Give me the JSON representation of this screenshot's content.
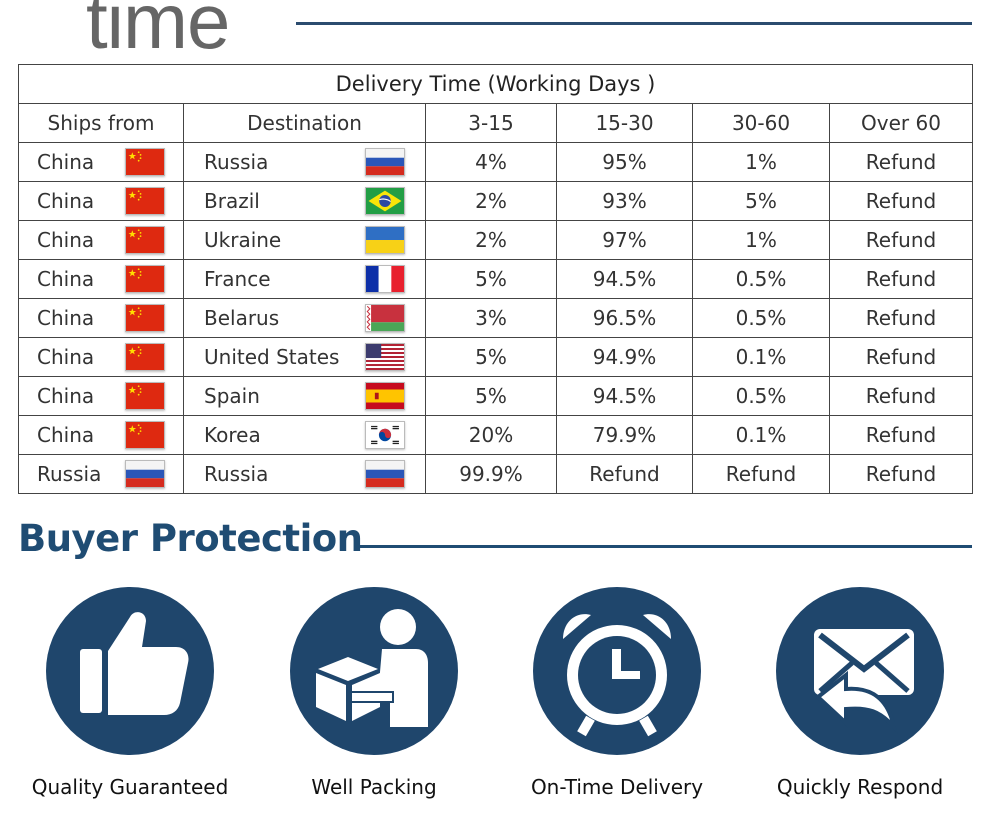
{
  "header": {
    "title": "time"
  },
  "table": {
    "title": "Delivery Time (Working Days )",
    "columns": [
      "Ships from",
      "Destination",
      "3-15",
      "15-30",
      "30-60",
      "Over 60"
    ],
    "rows": [
      {
        "from": "China",
        "from_flag": "china-flag-icon",
        "dest": "Russia",
        "dest_flag": "russia-flag-icon",
        "c1": "4%",
        "c2": "95%",
        "c3": "1%",
        "c4": "Refund"
      },
      {
        "from": "China",
        "from_flag": "china-flag-icon",
        "dest": "Brazil",
        "dest_flag": "brazil-flag-icon",
        "c1": "2%",
        "c2": "93%",
        "c3": "5%",
        "c4": "Refund"
      },
      {
        "from": "China",
        "from_flag": "china-flag-icon",
        "dest": "Ukraine",
        "dest_flag": "ukraine-flag-icon",
        "c1": "2%",
        "c2": "97%",
        "c3": "1%",
        "c4": "Refund"
      },
      {
        "from": "China",
        "from_flag": "china-flag-icon",
        "dest": "France",
        "dest_flag": "france-flag-icon",
        "c1": "5%",
        "c2": "94.5%",
        "c3": "0.5%",
        "c4": "Refund"
      },
      {
        "from": "China",
        "from_flag": "china-flag-icon",
        "dest": "Belarus",
        "dest_flag": "belarus-flag-icon",
        "c1": "3%",
        "c2": "96.5%",
        "c3": "0.5%",
        "c4": "Refund"
      },
      {
        "from": "China",
        "from_flag": "china-flag-icon",
        "dest": "United States",
        "dest_flag": "usa-flag-icon",
        "c1": "5%",
        "c2": "94.9%",
        "c3": "0.1%",
        "c4": "Refund"
      },
      {
        "from": "China",
        "from_flag": "china-flag-icon",
        "dest": "Spain",
        "dest_flag": "spain-flag-icon",
        "c1": "5%",
        "c2": "94.5%",
        "c3": "0.5%",
        "c4": "Refund"
      },
      {
        "from": "China",
        "from_flag": "china-flag-icon",
        "dest": "Korea",
        "dest_flag": "korea-flag-icon",
        "c1": "20%",
        "c2": "79.9%",
        "c3": "0.1%",
        "c4": "Refund"
      },
      {
        "from": "Russia",
        "from_flag": "russia-flag-icon",
        "dest": "Russia",
        "dest_flag": "russia-flag-icon",
        "c1": "99.9%",
        "c2": "Refund",
        "c3": "Refund",
        "c4": "Refund"
      }
    ]
  },
  "protection": {
    "title": "Buyer Protection",
    "features": [
      {
        "label": "Quality Guaranteed",
        "icon": "thumbs-up-icon"
      },
      {
        "label": "Well Packing",
        "icon": "package-icon"
      },
      {
        "label": "On-Time Delivery",
        "icon": "alarm-clock-icon"
      },
      {
        "label": "Quickly Respond",
        "icon": "mail-reply-icon"
      }
    ]
  },
  "colors": {
    "accent": "#1f466c",
    "title": "#1f4c73",
    "rule": "#2b4c6f"
  }
}
